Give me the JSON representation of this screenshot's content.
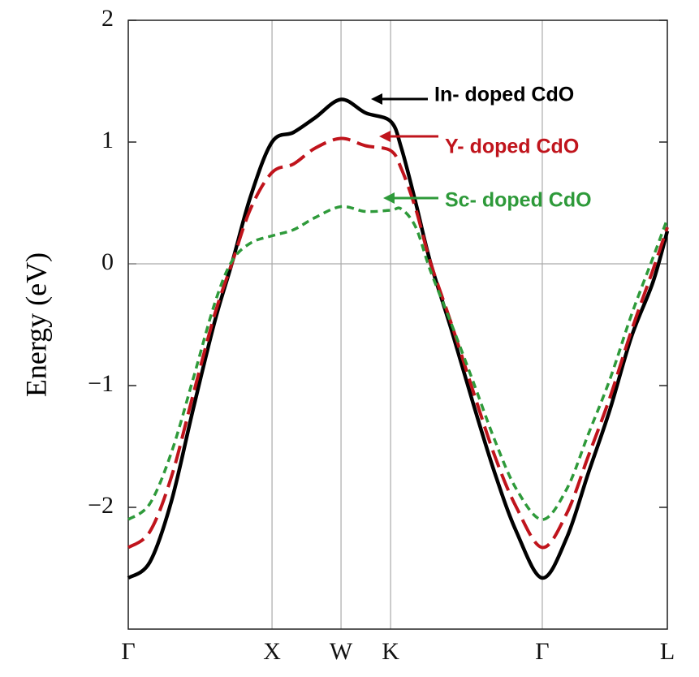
{
  "chart_data": {
    "type": "line",
    "ylabel": "Energy (eV)",
    "x": [
      0,
      0.15,
      0.3,
      0.45,
      0.6,
      0.72,
      0.85,
      1,
      1.15,
      1.3,
      1.48,
      1.65,
      1.825,
      1.9,
      2,
      2.1,
      2.25,
      2.4,
      2.55,
      2.7,
      2.88,
      3.05,
      3.2,
      3.35,
      3.5,
      3.65,
      3.75
    ],
    "series": [
      {
        "name": "In- doped CdO",
        "color": "#000000",
        "line_style": "solid",
        "values": [
          -2.58,
          -2.45,
          -1.95,
          -1.2,
          -0.48,
          0,
          0.55,
          1.0,
          1.08,
          1.2,
          1.35,
          1.24,
          1.17,
          0.95,
          0.5,
          0.02,
          -0.55,
          -1.15,
          -1.72,
          -2.2,
          -2.58,
          -2.25,
          -1.72,
          -1.2,
          -0.6,
          -0.15,
          0.27
        ]
      },
      {
        "name": "Y- doped CdO",
        "color": "#c0141c",
        "line_style": "dashed",
        "values": [
          -2.33,
          -2.2,
          -1.75,
          -1.08,
          -0.42,
          0,
          0.45,
          0.75,
          0.82,
          0.95,
          1.03,
          0.97,
          0.93,
          0.78,
          0.45,
          0.02,
          -0.5,
          -1.05,
          -1.58,
          -2.0,
          -2.33,
          -2.05,
          -1.58,
          -1.1,
          -0.55,
          -0.05,
          0.3
        ]
      },
      {
        "name": "Sc- doped CdO",
        "color": "#2e9a3a",
        "line_style": "dotted",
        "values": [
          -2.1,
          -1.97,
          -1.55,
          -0.95,
          -0.33,
          0.02,
          0.17,
          0.23,
          0.28,
          0.38,
          0.47,
          0.43,
          0.44,
          0.45,
          0.3,
          -0.05,
          -0.5,
          -0.97,
          -1.45,
          -1.85,
          -2.1,
          -1.85,
          -1.4,
          -0.95,
          -0.42,
          0.05,
          0.37
        ]
      }
    ],
    "xlim": [
      0,
      3.75
    ],
    "xticks": [
      {
        "value": 0,
        "label": "Γ"
      },
      {
        "value": 1,
        "label": "X"
      },
      {
        "value": 1.48,
        "label": "W"
      },
      {
        "value": 1.825,
        "label": "K"
      },
      {
        "value": 2.88,
        "label": "Γ"
      },
      {
        "value": 3.75,
        "label": "L"
      }
    ],
    "ylim": [
      -3,
      2
    ],
    "yticks": [
      {
        "value": -2,
        "label": "−2"
      },
      {
        "value": -1,
        "label": "−1"
      },
      0,
      1,
      2
    ],
    "grid": true,
    "zero_line": true
  }
}
